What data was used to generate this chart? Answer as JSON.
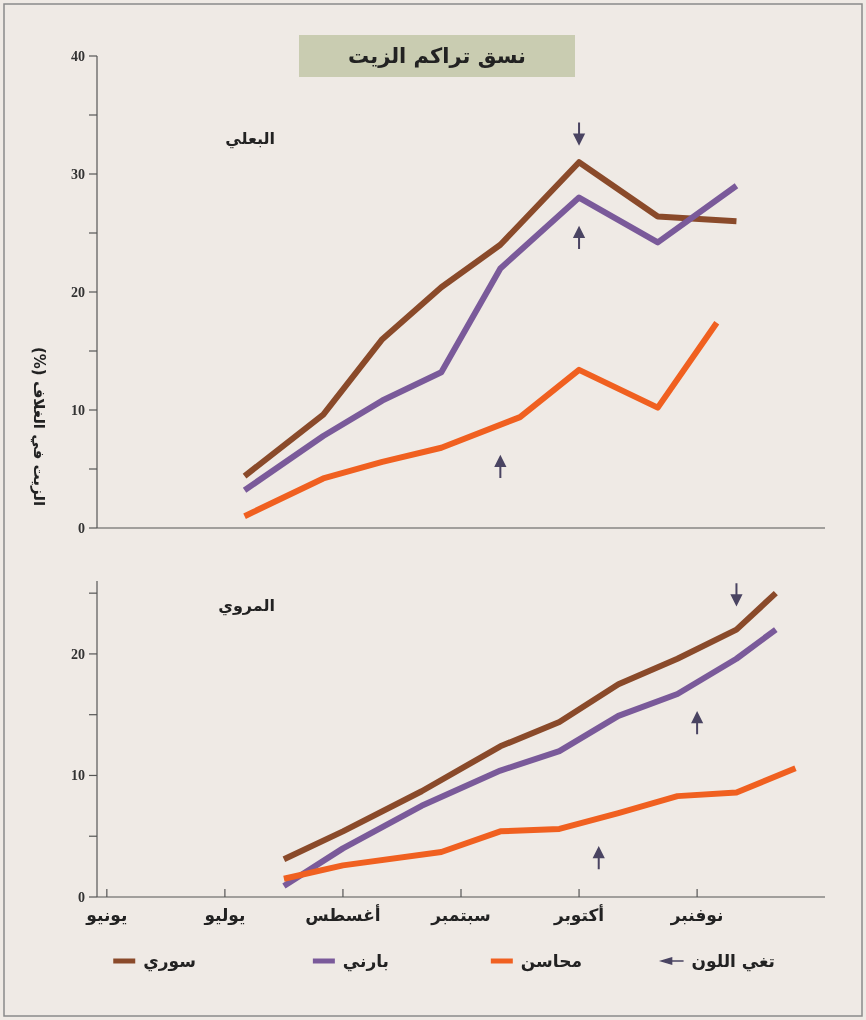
{
  "chart_data": [
    {
      "type": "line",
      "title": "نسق تراكم الزيت",
      "subtitle": "البعلي",
      "ylabel": "الزيت في الغلاف (%)",
      "ylim": [
        0,
        40
      ],
      "categories": [
        null,
        null,
        null,
        null,
        null,
        null,
        null,
        null,
        null,
        null,
        null,
        null,
        null,
        null,
        null,
        null,
        null,
        null,
        null,
        null,
        null,
        null,
        null,
        null,
        null,
        null,
        null,
        null,
        null,
        null,
        null,
        null,
        null,
        null,
        null,
        null,
        null
      ],
      "yticks": [
        0,
        {
          "value": 5,
          "label": null
        },
        10,
        {
          "value": 15,
          "label": null
        },
        20,
        {
          "value": 25,
          "label": null
        },
        30,
        {
          "value": 35,
          "label": null
        },
        40
      ],
      "series": [
        {
          "color": "#8a4a2a",
          "values": [
            null,
            null,
            null,
            null,
            null,
            null,
            null,
            4.4,
            null,
            null,
            null,
            9.6,
            null,
            null,
            16,
            null,
            null,
            20.4,
            null,
            null,
            24,
            null,
            null,
            null,
            31,
            null,
            null,
            null,
            26.4,
            null,
            null,
            null,
            26,
            null,
            null,
            null,
            null
          ]
        },
        {
          "color": "#7a5a9a",
          "values": [
            null,
            null,
            null,
            null,
            null,
            null,
            null,
            3.2,
            null,
            null,
            null,
            7.8,
            null,
            null,
            10.8,
            null,
            null,
            13.2,
            null,
            null,
            22,
            null,
            null,
            null,
            28,
            null,
            null,
            null,
            24.2,
            null,
            null,
            null,
            29,
            null,
            null,
            null,
            null
          ]
        },
        {
          "color": "#f06020",
          "values": [
            null,
            null,
            null,
            null,
            null,
            null,
            null,
            1,
            null,
            null,
            null,
            4.2,
            null,
            null,
            5.6,
            null,
            null,
            6.8,
            null,
            null,
            null,
            9.4,
            null,
            null,
            13.4,
            null,
            null,
            null,
            10.2,
            null,
            null,
            17.4,
            null,
            null,
            null,
            null,
            null
          ]
        },
        {
          "type": "scatter",
          "color": "#4a4462",
          "values": [
            null,
            null,
            null,
            null,
            null,
            null,
            null,
            null,
            null,
            null,
            null,
            null,
            null,
            null,
            null,
            null,
            null,
            null,
            null,
            null,
            5.6,
            null,
            null,
            null,
            25,
            null,
            null,
            null,
            null,
            null,
            null,
            null,
            null,
            null,
            null,
            null,
            null
          ]
        },
        {
          "type": "scatter",
          "color": "#4a4462",
          "values": [
            null,
            null,
            null,
            null,
            null,
            null,
            null,
            null,
            null,
            null,
            null,
            null,
            null,
            null,
            null,
            null,
            null,
            null,
            null,
            null,
            null,
            null,
            null,
            null,
            33,
            null,
            null,
            null,
            null,
            null,
            null,
            null,
            null,
            null,
            null,
            null,
            null
          ]
        }
      ]
    },
    {
      "type": "line",
      "subtitle": "المروي",
      "ylim": [
        0,
        26
      ],
      "legend": "bottom",
      "categories": [
        "يونيو",
        null,
        null,
        null,
        null,
        null,
        "يوليو",
        null,
        null,
        null,
        null,
        null,
        "أغسطس",
        null,
        null,
        null,
        null,
        null,
        "سبتمبر",
        null,
        null,
        null,
        null,
        null,
        "أكتوبر",
        null,
        null,
        null,
        null,
        null,
        "نوفنبر",
        null,
        null,
        null,
        null,
        null,
        null
      ],
      "yticks": [
        0,
        {
          "value": 5,
          "label": null
        },
        10,
        {
          "value": 15,
          "label": null
        },
        20,
        {
          "value": 25,
          "label": null
        }
      ],
      "series": [
        {
          "name": "سوري",
          "color": "#8a4a2a",
          "values": [
            null,
            null,
            null,
            null,
            null,
            null,
            null,
            null,
            null,
            3.1,
            null,
            null,
            5.4,
            null,
            null,
            null,
            8.7,
            null,
            null,
            null,
            12.4,
            null,
            null,
            14.4,
            null,
            null,
            17.5,
            null,
            null,
            19.6,
            null,
            null,
            22,
            null,
            25,
            null,
            null
          ]
        },
        {
          "name": "بارني",
          "color": "#7a5a9a",
          "values": [
            null,
            null,
            null,
            null,
            null,
            null,
            null,
            null,
            null,
            0.9,
            null,
            null,
            4,
            null,
            null,
            null,
            7.5,
            null,
            null,
            null,
            10.4,
            null,
            null,
            12,
            null,
            null,
            14.9,
            null,
            null,
            16.7,
            null,
            null,
            19.6,
            null,
            22,
            null,
            null
          ]
        },
        {
          "name": "محاسن",
          "color": "#f06020",
          "values": [
            null,
            null,
            null,
            null,
            null,
            null,
            null,
            null,
            null,
            1.5,
            null,
            null,
            2.6,
            null,
            null,
            null,
            null,
            3.7,
            null,
            null,
            5.4,
            null,
            null,
            5.6,
            null,
            null,
            6.9,
            null,
            null,
            8.3,
            null,
            null,
            8.6,
            null,
            null,
            10.6,
            null
          ]
        },
        {
          "name": "تغي اللون",
          "type": "scatter",
          "color": "#4a4462",
          "values": [
            null,
            null,
            null,
            null,
            null,
            null,
            null,
            null,
            null,
            null,
            null,
            null,
            null,
            null,
            null,
            null,
            null,
            null,
            null,
            null,
            null,
            null,
            null,
            null,
            null,
            3.6,
            null,
            null,
            null,
            null,
            14.7,
            null,
            24.5,
            null,
            null,
            null,
            null
          ]
        }
      ]
    }
  ]
}
